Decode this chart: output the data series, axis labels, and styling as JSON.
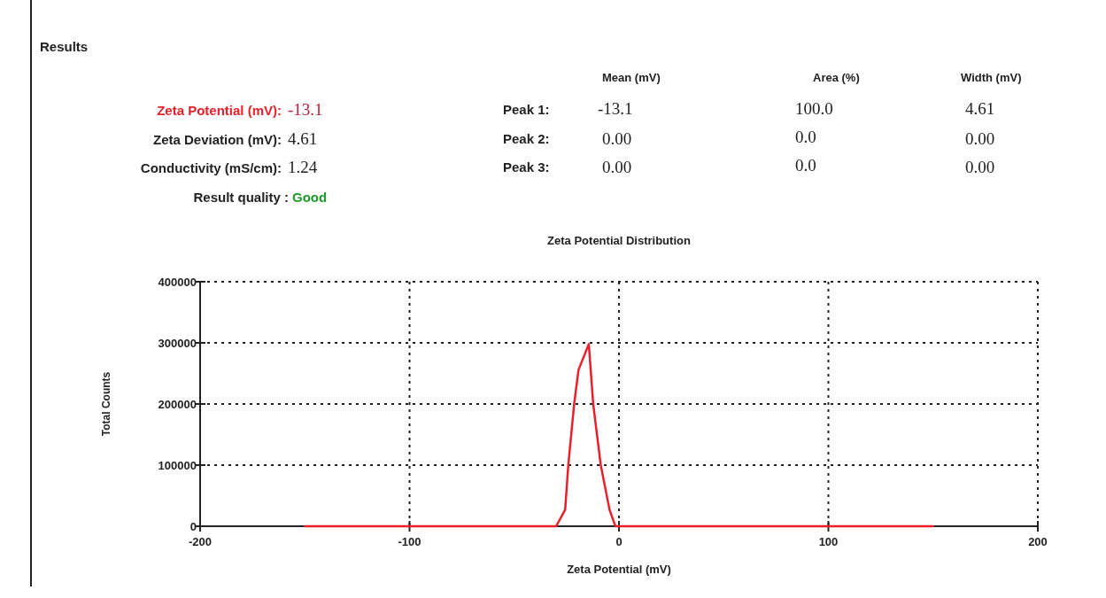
{
  "chart_data": {
    "type": "line",
    "title": "Zeta Potential Distribution",
    "xlabel": "Zeta Potential (mV)",
    "ylabel": "Total Counts",
    "annotations": [
      "Results",
      "Zeta Potential (mV):",
      "-13.1",
      "Zeta Deviation (mV):",
      "4.61",
      "Conductivity (mS/cm):",
      "1.24",
      "Result quality :",
      "Good",
      "Mean (mV)",
      "Area (%)",
      "Width (mV)",
      "Peak 1:",
      "-13.1",
      "100.0",
      "4.61",
      "Peak 2:",
      "0.00",
      "0.0",
      "0.00",
      "Peak 3:",
      "0.00",
      "0.0",
      "0.00"
    ],
    "series": [
      {
        "color": "#e8202a",
        "x": [
          -150,
          -30,
          -25.7,
          -24.2,
          -21.4,
          -19.3,
          -14.4,
          -12.3,
          -8.7,
          -4.5,
          -1.7,
          150
        ],
        "values": [
          0,
          0,
          27000,
          100000,
          200000,
          256000,
          298000,
          200000,
          100000,
          27000,
          0,
          0
        ]
      }
    ],
    "xlim": [
      -200,
      200
    ],
    "xticks": [
      -200,
      -100,
      0,
      100,
      200
    ],
    "ylim": [
      0,
      400000
    ],
    "yticks": [
      0,
      100000,
      200000,
      300000,
      400000
    ],
    "grid": true,
    "marker": "none",
    "line_style": "solid"
  }
}
